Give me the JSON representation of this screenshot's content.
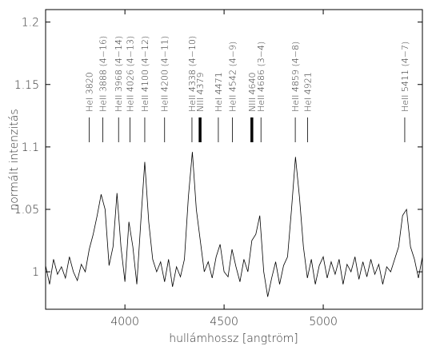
{
  "chart_data": {
    "type": "line",
    "xlabel": "hullámhossz [angtröm]",
    "ylabel": "normált intenzitás",
    "xlim": [
      3600,
      5500
    ],
    "ylim": [
      0.97,
      1.21
    ],
    "xticks": [
      4000,
      4500,
      5000
    ],
    "yticks": [
      1,
      1.05,
      1.1,
      1.15,
      1.2
    ],
    "grid": false,
    "series": [
      {
        "color": "#000000",
        "x": [
          3600,
          3620,
          3640,
          3660,
          3680,
          3700,
          3720,
          3740,
          3760,
          3780,
          3800,
          3820,
          3840,
          3860,
          3880,
          3900,
          3920,
          3940,
          3960,
          3980,
          4000,
          4020,
          4040,
          4060,
          4080,
          4100,
          4120,
          4140,
          4160,
          4180,
          4200,
          4220,
          4240,
          4260,
          4280,
          4300,
          4320,
          4340,
          4360,
          4380,
          4400,
          4420,
          4440,
          4460,
          4480,
          4500,
          4520,
          4540,
          4560,
          4580,
          4600,
          4620,
          4640,
          4660,
          4680,
          4700,
          4720,
          4740,
          4760,
          4780,
          4800,
          4820,
          4840,
          4860,
          4880,
          4900,
          4920,
          4940,
          4960,
          4980,
          5000,
          5020,
          5040,
          5060,
          5080,
          5100,
          5120,
          5140,
          5160,
          5180,
          5200,
          5220,
          5240,
          5260,
          5280,
          5300,
          5320,
          5340,
          5360,
          5380,
          5400,
          5420,
          5440,
          5460,
          5480,
          5500
        ],
        "values": [
          1.005,
          0.99,
          1.01,
          0.998,
          1.004,
          0.995,
          1.012,
          1.0,
          0.993,
          1.006,
          1.0,
          1.018,
          1.03,
          1.045,
          1.062,
          1.05,
          1.005,
          1.02,
          1.063,
          1.02,
          0.992,
          1.04,
          1.02,
          0.99,
          1.04,
          1.088,
          1.04,
          1.01,
          1.0,
          1.008,
          0.992,
          1.01,
          0.988,
          1.004,
          0.996,
          1.01,
          1.06,
          1.096,
          1.05,
          1.025,
          1.0,
          1.008,
          0.995,
          1.012,
          1.022,
          1.0,
          0.996,
          1.018,
          1.004,
          0.992,
          1.01,
          1.0,
          1.025,
          1.03,
          1.045,
          1.0,
          0.98,
          0.995,
          1.008,
          0.99,
          1.005,
          1.012,
          1.05,
          1.092,
          1.06,
          1.02,
          0.995,
          1.01,
          0.99,
          1.005,
          1.012,
          0.995,
          1.008,
          0.998,
          1.01,
          0.99,
          1.006,
          1.0,
          1.012,
          0.994,
          1.008,
          0.996,
          1.01,
          0.998,
          1.006,
          0.99,
          1.004,
          1.0,
          1.01,
          1.02,
          1.045,
          1.05,
          1.02,
          1.01,
          0.995,
          1.012
        ]
      }
    ],
    "annotations": [
      {
        "label": "HeI 3820",
        "x": 3820,
        "thick": false
      },
      {
        "label": "HeII 3888 (4−16)",
        "x": 3888,
        "thick": false
      },
      {
        "label": "HeII 3968 (4−14)",
        "x": 3968,
        "thick": false
      },
      {
        "label": "HeII 4026 (4−13)",
        "x": 4026,
        "thick": false
      },
      {
        "label": "HeII 4100 (4−12)",
        "x": 4100,
        "thick": false
      },
      {
        "label": "HeII 4200 (4−11)",
        "x": 4200,
        "thick": false
      },
      {
        "label": "HeII 4338 (4−10)",
        "x": 4338,
        "thick": false
      },
      {
        "label": "NIII 4379",
        "x": 4379,
        "thick": true
      },
      {
        "label": "HeI 4471",
        "x": 4471,
        "thick": false
      },
      {
        "label": "HeII 4542 (4−9)",
        "x": 4542,
        "thick": false
      },
      {
        "label": "NIII 4640",
        "x": 4640,
        "thick": true
      },
      {
        "label": "HeII 4686 (3−4)",
        "x": 4686,
        "thick": false
      },
      {
        "label": "HeII 4859 (4−8)",
        "x": 4859,
        "thick": false
      },
      {
        "label": "HeI 4921",
        "x": 4921,
        "thick": false
      },
      {
        "label": "HeII 5411 (4−7)",
        "x": 5411,
        "thick": false
      }
    ]
  }
}
